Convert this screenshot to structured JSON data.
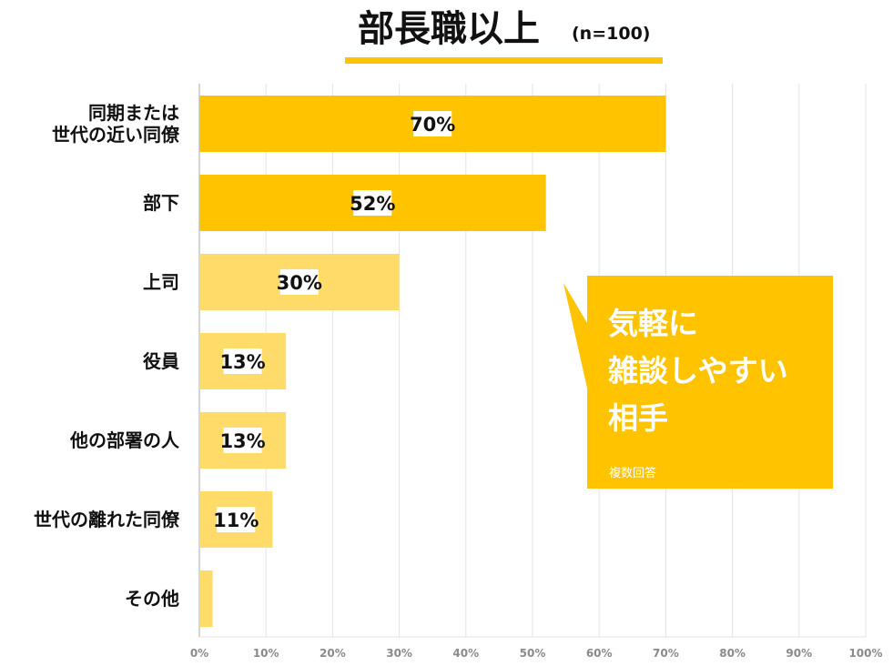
{
  "title": {
    "main": "部長職以上",
    "sub": "(n=100)"
  },
  "callout": {
    "lines": [
      "気軽に",
      "雑談しやすい",
      "相手"
    ],
    "note": "複数回答"
  },
  "colors": {
    "accent": "#ffc300",
    "light": "#ffdc6a",
    "grid": "#e3e3e3",
    "axis": "#aaaaaa",
    "tick_text": "#8a8a8a",
    "text": "#111111"
  },
  "chart_data": {
    "type": "bar",
    "orientation": "horizontal",
    "categories": [
      [
        "同期または",
        "世代の近い同僚"
      ],
      [
        "部下"
      ],
      [
        "上司"
      ],
      [
        "役員"
      ],
      [
        "他の部署の人"
      ],
      [
        "世代の離れた同僚"
      ],
      [
        "その他"
      ]
    ],
    "values": [
      70,
      52,
      30,
      13,
      13,
      11,
      2
    ],
    "value_labels": [
      "70%",
      "52%",
      "30%",
      "13%",
      "13%",
      "11%",
      ""
    ],
    "highlight": [
      true,
      true,
      false,
      false,
      false,
      false,
      false
    ],
    "xlim": [
      0,
      100
    ],
    "ticks": [
      0,
      10,
      20,
      30,
      40,
      50,
      60,
      70,
      80,
      90,
      100
    ],
    "tick_labels": [
      "0%",
      "10%",
      "20%",
      "30%",
      "40%",
      "50%",
      "60%",
      "70%",
      "80%",
      "90%",
      "100%"
    ],
    "grid": true
  }
}
